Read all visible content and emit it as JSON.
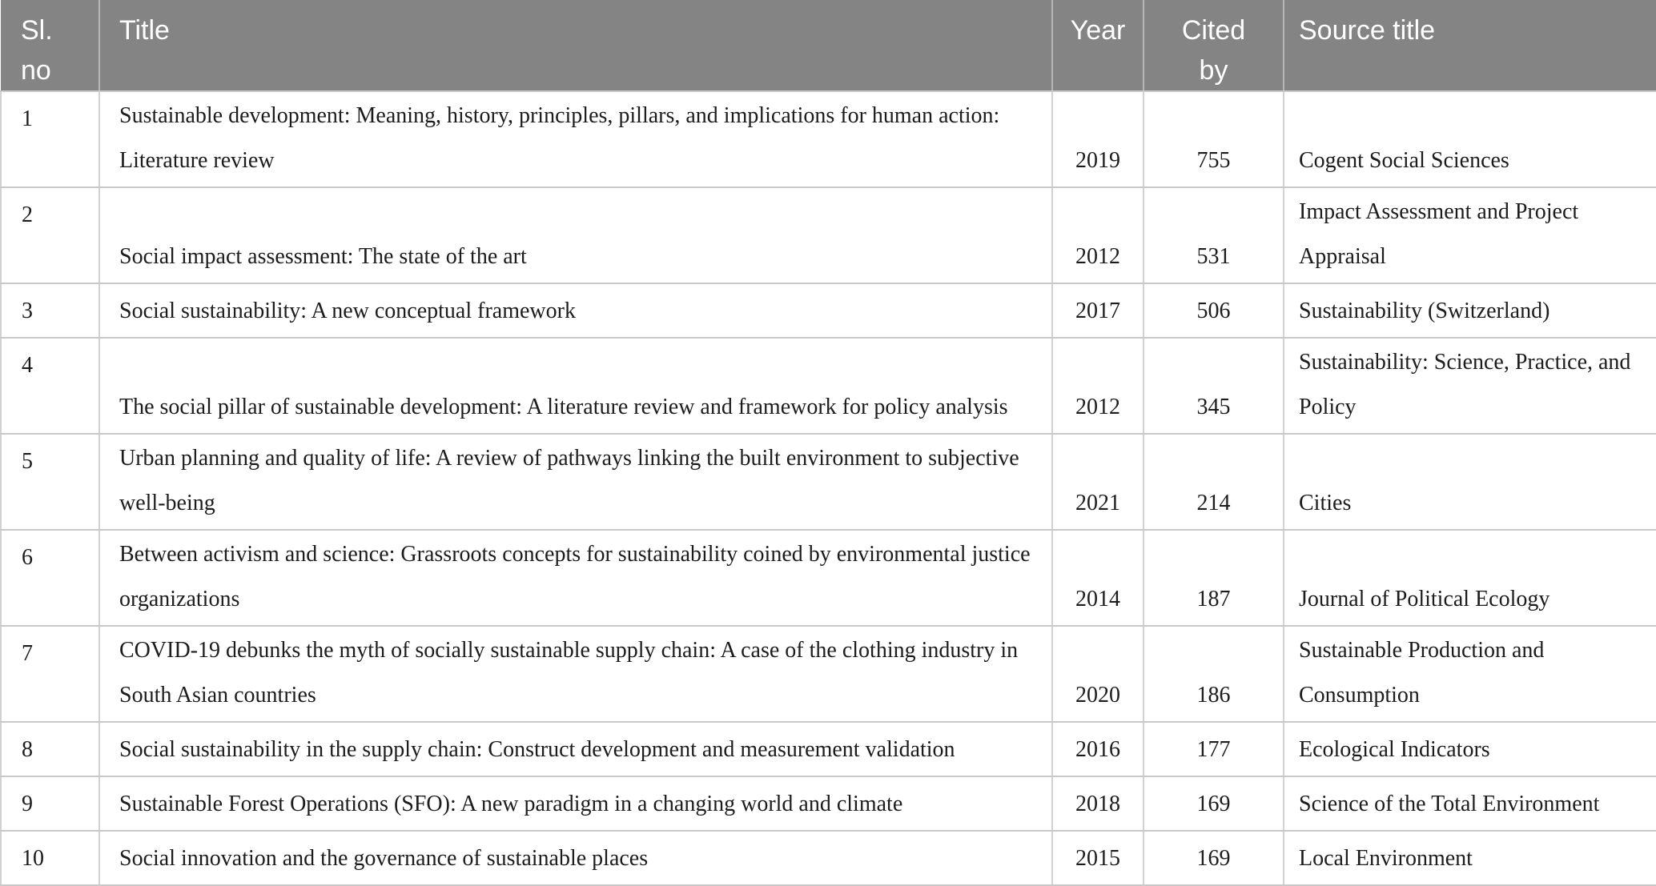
{
  "table": {
    "columns": [
      {
        "key": "sl",
        "label": "Sl. no"
      },
      {
        "key": "title",
        "label": "Title"
      },
      {
        "key": "year",
        "label": "Year"
      },
      {
        "key": "cited",
        "label": "Cited by"
      },
      {
        "key": "source",
        "label": "Source title"
      }
    ],
    "rows": [
      {
        "sl": "1",
        "title": "Sustainable development: Meaning, history, principles, pillars, and implications for human action: Literature review",
        "year": "2019",
        "cited": "755",
        "source": "Cogent Social Sciences"
      },
      {
        "sl": "2",
        "title": "Social impact assessment: The state of the art",
        "year": "2012",
        "cited": "531",
        "source": "Impact Assessment and Project Appraisal"
      },
      {
        "sl": "3",
        "title": "Social sustainability: A new conceptual framework",
        "year": "2017",
        "cited": "506",
        "source": "Sustainability (Switzerland)"
      },
      {
        "sl": "4",
        "title": "The social pillar of sustainable development: A literature review and framework for policy analysis",
        "year": "2012",
        "cited": "345",
        "source": "Sustainability: Science, Practice, and Policy"
      },
      {
        "sl": "5",
        "title": "Urban planning and quality of life: A review of pathways linking the built environment to subjective well-being",
        "year": "2021",
        "cited": "214",
        "source": "Cities"
      },
      {
        "sl": "6",
        "title": "Between activism and science: Grassroots concepts for sustainability coined by environmental justice organizations",
        "year": "2014",
        "cited": "187",
        "source": "Journal of Political Ecology"
      },
      {
        "sl": "7",
        "title": "COVID-19 debunks the myth of socially sustainable supply chain: A case of the clothing industry in South Asian countries",
        "year": "2020",
        "cited": "186",
        "source": "Sustainable Production and Consumption"
      },
      {
        "sl": "8",
        "title": "Social sustainability in the supply chain: Construct development and measurement validation",
        "year": "2016",
        "cited": "177",
        "source": "Ecological Indicators"
      },
      {
        "sl": "9",
        "title": "Sustainable Forest Operations (SFO): A new paradigm in a changing world and climate",
        "year": "2018",
        "cited": "169",
        "source": "Science of the Total Environment"
      },
      {
        "sl": "10",
        "title": "Social innovation and the governance of sustainable places",
        "year": "2015",
        "cited": "169",
        "source": "Local Environment"
      }
    ]
  },
  "colors": {
    "header_bg": "#848484",
    "header_text": "#ffffff",
    "header_divider": "#b5b5b5",
    "border_h": "#c9c9c9",
    "border_v": "#d2d2d2",
    "body_text": "#1c1c1c",
    "page_bg": "#ffffff"
  }
}
